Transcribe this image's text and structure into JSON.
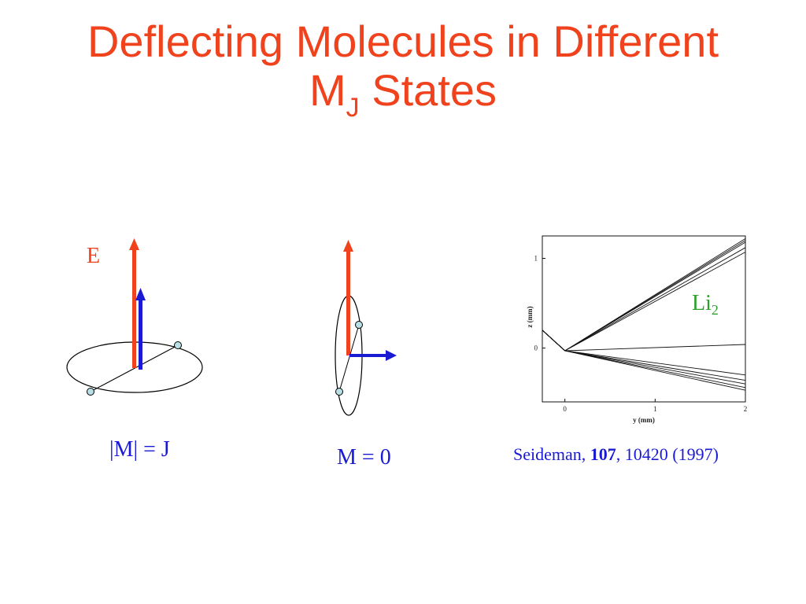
{
  "slide": {
    "title_main": "Deflecting Molecules in Different",
    "title_m": "M",
    "title_sub": "J",
    "title_end": " States"
  },
  "diagram_left": {
    "field_label": "E",
    "state_label": "|M| = J"
  },
  "diagram_middle": {
    "state_label": "M = 0"
  },
  "colors": {
    "title": "#f0421c",
    "field_arrow": "#f0421c",
    "angular_momentum_arrow": "#1a1ad4",
    "atom_fill": "#b8dfe6",
    "species_label": "#2ca02c"
  },
  "plot": {
    "species": "Li",
    "species_sub": "2",
    "xlabel": "y (mm)",
    "ylabel": "z (mm)",
    "x_ticks": [
      "0",
      "1",
      "2"
    ],
    "y_ticks": [
      "1",
      "0"
    ]
  },
  "citation": {
    "author": "Seideman,",
    "volume": "107",
    "rest": ", 10420 (1997)"
  },
  "chart_data": {
    "type": "line",
    "xlabel": "y (mm)",
    "ylabel": "z (mm)",
    "xlim": [
      -0.25,
      2
    ],
    "ylim": [
      -0.6,
      1.25
    ],
    "x_ticks": [
      0,
      1,
      2
    ],
    "y_ticks": [
      0,
      1
    ],
    "series": [
      {
        "values": [
          [
            -0.25,
            0.2
          ],
          [
            0,
            -0.03
          ],
          [
            2,
            1.22
          ]
        ]
      },
      {
        "values": [
          [
            -0.25,
            0.2
          ],
          [
            0,
            -0.03
          ],
          [
            2,
            1.2
          ]
        ]
      },
      {
        "values": [
          [
            -0.25,
            0.2
          ],
          [
            0,
            -0.03
          ],
          [
            2,
            1.18
          ]
        ]
      },
      {
        "values": [
          [
            -0.25,
            0.2
          ],
          [
            0,
            -0.03
          ],
          [
            2,
            1.12
          ]
        ]
      },
      {
        "values": [
          [
            -0.25,
            0.2
          ],
          [
            0,
            -0.03
          ],
          [
            2,
            1.07
          ]
        ]
      },
      {
        "values": [
          [
            -0.25,
            0.2
          ],
          [
            0,
            -0.03
          ],
          [
            2,
            0.04
          ]
        ]
      },
      {
        "values": [
          [
            -0.25,
            0.2
          ],
          [
            0,
            -0.03
          ],
          [
            2,
            -0.3
          ]
        ]
      },
      {
        "values": [
          [
            -0.25,
            0.2
          ],
          [
            0,
            -0.03
          ],
          [
            2,
            -0.36
          ]
        ]
      },
      {
        "values": [
          [
            -0.25,
            0.2
          ],
          [
            0,
            -0.03
          ],
          [
            2,
            -0.4
          ]
        ]
      },
      {
        "values": [
          [
            -0.25,
            0.2
          ],
          [
            0,
            -0.03
          ],
          [
            2,
            -0.44
          ]
        ]
      },
      {
        "values": [
          [
            -0.25,
            0.2
          ],
          [
            0,
            -0.03
          ],
          [
            2,
            -0.47
          ]
        ]
      }
    ]
  }
}
